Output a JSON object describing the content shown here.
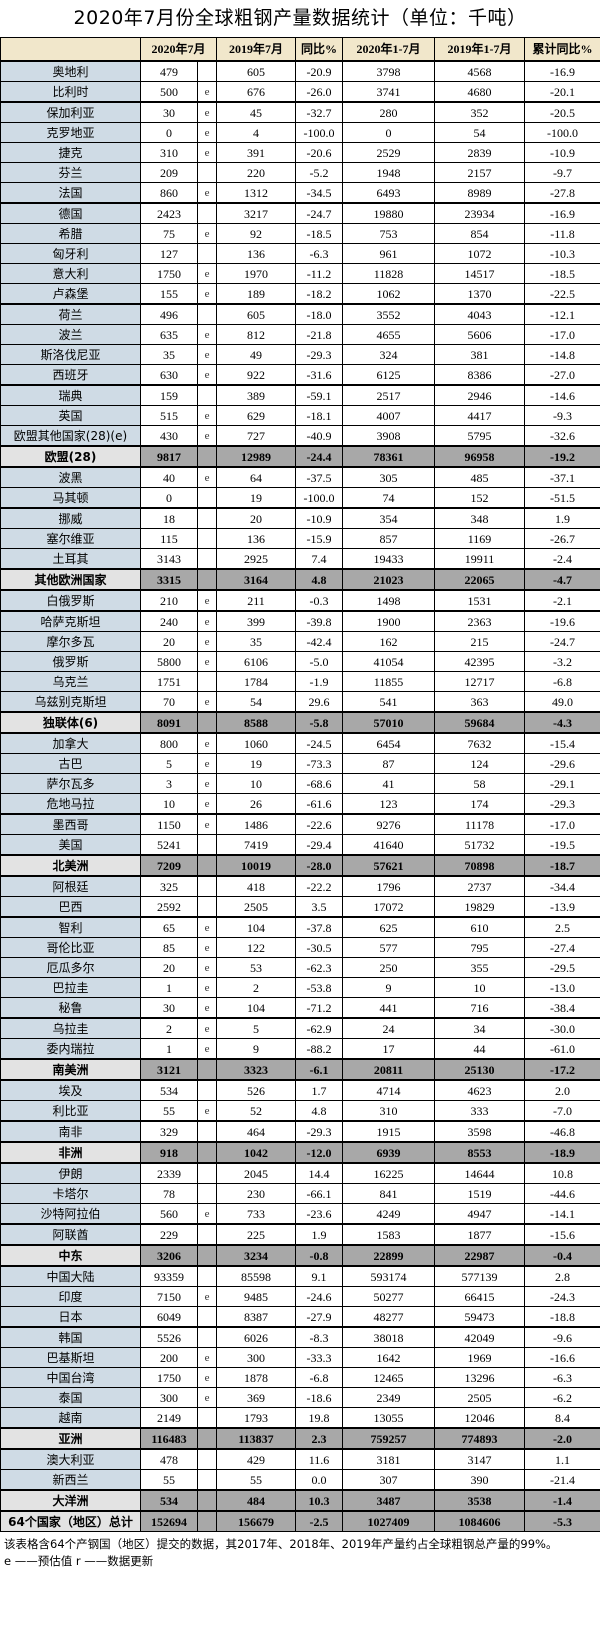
{
  "title": "2020年7月份全球粗钢产量数据统计（单位：千吨）",
  "columns": [
    "",
    "2020年7月",
    "2019年7月",
    "同比%",
    "2020年1-7月",
    "2019年1-7月",
    "累计同比%"
  ],
  "rows": [
    {
      "name": "奥地利",
      "v": [
        "479",
        "",
        "605",
        "-20.9",
        "3798",
        "4568",
        "-16.9"
      ]
    },
    {
      "name": "比利时",
      "v": [
        "500",
        "e",
        "676",
        "-26.0",
        "3741",
        "4680",
        "-20.1"
      ]
    },
    {
      "name": "保加利亚",
      "v": [
        "30",
        "e",
        "45",
        "-32.7",
        "280",
        "352",
        "-20.5"
      ]
    },
    {
      "name": "克罗地亚",
      "v": [
        "0",
        "e",
        "4",
        "-100.0",
        "0",
        "54",
        "-100.0"
      ]
    },
    {
      "name": "捷克",
      "v": [
        "310",
        "e",
        "391",
        "-20.6",
        "2529",
        "2839",
        "-10.9"
      ]
    },
    {
      "name": "芬兰",
      "v": [
        "209",
        "",
        "220",
        "-5.2",
        "1948",
        "2157",
        "-9.7"
      ]
    },
    {
      "name": "法国",
      "v": [
        "860",
        "e",
        "1312",
        "-34.5",
        "6493",
        "8989",
        "-27.8"
      ]
    },
    {
      "name": "德国",
      "v": [
        "2423",
        "",
        "3217",
        "-24.7",
        "19880",
        "23934",
        "-16.9"
      ]
    },
    {
      "name": "希腊",
      "v": [
        "75",
        "e",
        "92",
        "-18.5",
        "753",
        "854",
        "-11.8"
      ]
    },
    {
      "name": "匈牙利",
      "v": [
        "127",
        "",
        "136",
        "-6.3",
        "961",
        "1072",
        "-10.3"
      ]
    },
    {
      "name": "意大利",
      "v": [
        "1750",
        "e",
        "1970",
        "-11.2",
        "11828",
        "14517",
        "-18.5"
      ]
    },
    {
      "name": "卢森堡",
      "v": [
        "155",
        "e",
        "189",
        "-18.2",
        "1062",
        "1370",
        "-22.5"
      ]
    },
    {
      "name": "荷兰",
      "v": [
        "496",
        "",
        "605",
        "-18.0",
        "3552",
        "4043",
        "-12.1"
      ]
    },
    {
      "name": "波兰",
      "v": [
        "635",
        "e",
        "812",
        "-21.8",
        "4655",
        "5606",
        "-17.0"
      ]
    },
    {
      "name": "斯洛伐尼亚",
      "v": [
        "35",
        "e",
        "49",
        "-29.3",
        "324",
        "381",
        "-14.8"
      ]
    },
    {
      "name": "西班牙",
      "v": [
        "630",
        "e",
        "922",
        "-31.6",
        "6125",
        "8386",
        "-27.0"
      ]
    },
    {
      "name": "瑞典",
      "v": [
        "159",
        "",
        "389",
        "-59.1",
        "2517",
        "2946",
        "-14.6"
      ]
    },
    {
      "name": "英国",
      "v": [
        "515",
        "e",
        "629",
        "-18.1",
        "4007",
        "4417",
        "-9.3"
      ]
    },
    {
      "name": "欧盟其他国家(28)(e)",
      "v": [
        "430",
        "e",
        "727",
        "-40.9",
        "3908",
        "5795",
        "-32.6"
      ]
    },
    {
      "name": "欧盟(28)",
      "sub": true,
      "v": [
        "9817",
        "",
        "12989",
        "-24.4",
        "78361",
        "96958",
        "-19.2"
      ]
    },
    {
      "name": "波黑",
      "v": [
        "40",
        "e",
        "64",
        "-37.5",
        "305",
        "485",
        "-37.1"
      ]
    },
    {
      "name": "马其顿",
      "v": [
        "0",
        "",
        "19",
        "-100.0",
        "74",
        "152",
        "-51.5"
      ]
    },
    {
      "name": "挪威",
      "v": [
        "18",
        "",
        "20",
        "-10.9",
        "354",
        "348",
        "1.9"
      ]
    },
    {
      "name": "塞尔维亚",
      "v": [
        "115",
        "",
        "136",
        "-15.9",
        "857",
        "1169",
        "-26.7"
      ]
    },
    {
      "name": "土耳其",
      "v": [
        "3143",
        "",
        "2925",
        "7.4",
        "19433",
        "19911",
        "-2.4"
      ]
    },
    {
      "name": "其他欧洲国家",
      "sub": true,
      "v": [
        "3315",
        "",
        "3164",
        "4.8",
        "21023",
        "22065",
        "-4.7"
      ]
    },
    {
      "name": "白俄罗斯",
      "v": [
        "210",
        "e",
        "211",
        "-0.3",
        "1498",
        "1531",
        "-2.1"
      ]
    },
    {
      "name": "哈萨克斯坦",
      "v": [
        "240",
        "e",
        "399",
        "-39.8",
        "1900",
        "2363",
        "-19.6"
      ]
    },
    {
      "name": "摩尔多瓦",
      "v": [
        "20",
        "e",
        "35",
        "-42.4",
        "162",
        "215",
        "-24.7"
      ]
    },
    {
      "name": "俄罗斯",
      "v": [
        "5800",
        "e",
        "6106",
        "-5.0",
        "41054",
        "42395",
        "-3.2"
      ]
    },
    {
      "name": "乌克兰",
      "v": [
        "1751",
        "",
        "1784",
        "-1.9",
        "11855",
        "12717",
        "-6.8"
      ]
    },
    {
      "name": "乌兹别克斯坦",
      "v": [
        "70",
        "e",
        "54",
        "29.6",
        "541",
        "363",
        "49.0"
      ]
    },
    {
      "name": "独联体(6)",
      "sub": true,
      "v": [
        "8091",
        "",
        "8588",
        "-5.8",
        "57010",
        "59684",
        "-4.3"
      ]
    },
    {
      "name": "加拿大",
      "v": [
        "800",
        "e",
        "1060",
        "-24.5",
        "6454",
        "7632",
        "-15.4"
      ]
    },
    {
      "name": "古巴",
      "v": [
        "5",
        "e",
        "19",
        "-73.3",
        "87",
        "124",
        "-29.6"
      ]
    },
    {
      "name": "萨尔瓦多",
      "v": [
        "3",
        "e",
        "10",
        "-68.6",
        "41",
        "58",
        "-29.1"
      ]
    },
    {
      "name": "危地马拉",
      "v": [
        "10",
        "e",
        "26",
        "-61.6",
        "123",
        "174",
        "-29.3"
      ]
    },
    {
      "name": "墨西哥",
      "v": [
        "1150",
        "e",
        "1486",
        "-22.6",
        "9276",
        "11178",
        "-17.0"
      ]
    },
    {
      "name": "美国",
      "v": [
        "5241",
        "",
        "7419",
        "-29.4",
        "41640",
        "51732",
        "-19.5"
      ]
    },
    {
      "name": "北美洲",
      "sub": true,
      "v": [
        "7209",
        "",
        "10019",
        "-28.0",
        "57621",
        "70898",
        "-18.7"
      ]
    },
    {
      "name": "阿根廷",
      "v": [
        "325",
        "",
        "418",
        "-22.2",
        "1796",
        "2737",
        "-34.4"
      ]
    },
    {
      "name": "巴西",
      "v": [
        "2592",
        "",
        "2505",
        "3.5",
        "17072",
        "19829",
        "-13.9"
      ]
    },
    {
      "name": "智利",
      "v": [
        "65",
        "e",
        "104",
        "-37.8",
        "625",
        "610",
        "2.5"
      ]
    },
    {
      "name": "哥伦比亚",
      "v": [
        "85",
        "e",
        "122",
        "-30.5",
        "577",
        "795",
        "-27.4"
      ]
    },
    {
      "name": "厄瓜多尔",
      "v": [
        "20",
        "e",
        "53",
        "-62.3",
        "250",
        "355",
        "-29.5"
      ]
    },
    {
      "name": "巴拉圭",
      "v": [
        "1",
        "e",
        "2",
        "-53.8",
        "9",
        "10",
        "-13.0"
      ]
    },
    {
      "name": "秘鲁",
      "v": [
        "30",
        "e",
        "104",
        "-71.2",
        "441",
        "716",
        "-38.4"
      ]
    },
    {
      "name": "乌拉圭",
      "v": [
        "2",
        "e",
        "5",
        "-62.9",
        "24",
        "34",
        "-30.0"
      ]
    },
    {
      "name": "委内瑞拉",
      "v": [
        "1",
        "e",
        "9",
        "-88.2",
        "17",
        "44",
        "-61.0"
      ]
    },
    {
      "name": "南美洲",
      "sub": true,
      "v": [
        "3121",
        "",
        "3323",
        "-6.1",
        "20811",
        "25130",
        "-17.2"
      ]
    },
    {
      "name": "埃及",
      "v": [
        "534",
        "",
        "526",
        "1.7",
        "4714",
        "4623",
        "2.0"
      ]
    },
    {
      "name": "利比亚",
      "v": [
        "55",
        "e",
        "52",
        "4.8",
        "310",
        "333",
        "-7.0"
      ]
    },
    {
      "name": "南非",
      "v": [
        "329",
        "",
        "464",
        "-29.3",
        "1915",
        "3598",
        "-46.8"
      ]
    },
    {
      "name": "非洲",
      "sub": true,
      "v": [
        "918",
        "",
        "1042",
        "-12.0",
        "6939",
        "8553",
        "-18.9"
      ]
    },
    {
      "name": "伊朗",
      "v": [
        "2339",
        "",
        "2045",
        "14.4",
        "16225",
        "14644",
        "10.8"
      ]
    },
    {
      "name": "卡塔尔",
      "v": [
        "78",
        "",
        "230",
        "-66.1",
        "841",
        "1519",
        "-44.6"
      ]
    },
    {
      "name": "沙特阿拉伯",
      "v": [
        "560",
        "e",
        "733",
        "-23.6",
        "4249",
        "4947",
        "-14.1"
      ]
    },
    {
      "name": "阿联酋",
      "v": [
        "229",
        "",
        "225",
        "1.9",
        "1583",
        "1877",
        "-15.6"
      ]
    },
    {
      "name": "中东",
      "sub": true,
      "v": [
        "3206",
        "",
        "3234",
        "-0.8",
        "22899",
        "22987",
        "-0.4"
      ]
    },
    {
      "name": "中国大陆",
      "v": [
        "93359",
        "",
        "85598",
        "9.1",
        "593174",
        "577139",
        "2.8"
      ]
    },
    {
      "name": "印度",
      "v": [
        "7150",
        "e",
        "9485",
        "-24.6",
        "50277",
        "66415",
        "-24.3"
      ]
    },
    {
      "name": "日本",
      "v": [
        "6049",
        "",
        "8387",
        "-27.9",
        "48277",
        "59473",
        "-18.8"
      ]
    },
    {
      "name": "韩国",
      "v": [
        "5526",
        "",
        "6026",
        "-8.3",
        "38018",
        "42049",
        "-9.6"
      ]
    },
    {
      "name": "巴基斯坦",
      "v": [
        "200",
        "e",
        "300",
        "-33.3",
        "1642",
        "1969",
        "-16.6"
      ]
    },
    {
      "name": "中国台湾",
      "v": [
        "1750",
        "e",
        "1878",
        "-6.8",
        "12465",
        "13296",
        "-6.3"
      ]
    },
    {
      "name": "泰国",
      "v": [
        "300",
        "e",
        "369",
        "-18.6",
        "2349",
        "2505",
        "-6.2"
      ]
    },
    {
      "name": "越南",
      "v": [
        "2149",
        "",
        "1793",
        "19.8",
        "13055",
        "12046",
        "8.4"
      ]
    },
    {
      "name": "亚洲",
      "sub": true,
      "v": [
        "116483",
        "",
        "113837",
        "2.3",
        "759257",
        "774893",
        "-2.0"
      ]
    },
    {
      "name": "澳大利亚",
      "v": [
        "478",
        "",
        "429",
        "11.6",
        "3181",
        "3147",
        "1.1"
      ]
    },
    {
      "name": "新西兰",
      "v": [
        "55",
        "",
        "55",
        "0.0",
        "307",
        "390",
        "-21.4"
      ]
    },
    {
      "name": "大洋洲",
      "sub": true,
      "v": [
        "534",
        "",
        "484",
        "10.3",
        "3487",
        "3538",
        "-1.4"
      ]
    },
    {
      "name": "64个国家（地区）总计",
      "sub": true,
      "v": [
        "152694",
        "",
        "156679",
        "-2.5",
        "1027409",
        "1084606",
        "-5.3"
      ]
    }
  ],
  "footnote": "该表格含64个产钢国（地区）提交的数据，其2017年、2018年、2019年产量约占全球粗钢总产量的99%。",
  "legend": "e ——预估值   r ——数据更新",
  "colors": {
    "header_bg": "#f1e7cb",
    "name_bg": "#cfdbe5",
    "subtotal_bg": "#a8a8a8",
    "subtotal_name_bg": "#e3e3e3"
  }
}
